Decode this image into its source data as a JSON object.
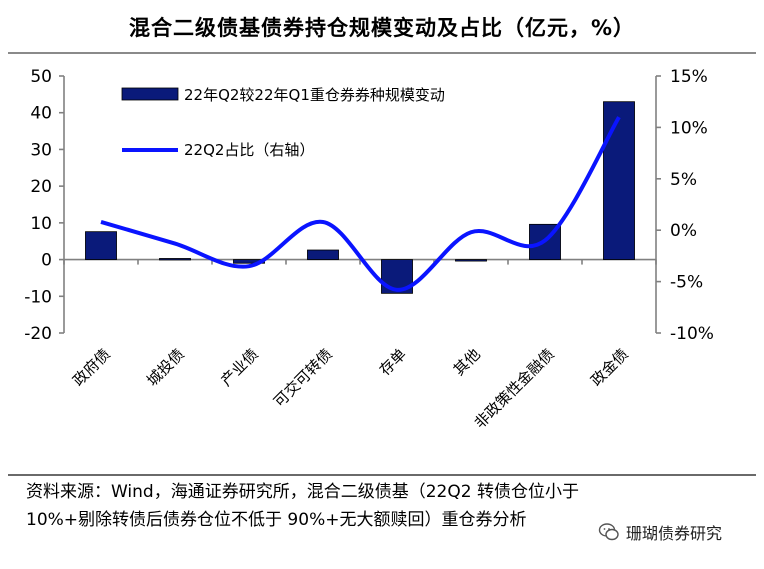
{
  "title": "混合二级债基债券持仓规模变动及占比（亿元，%）",
  "source_line1": "资料来源：Wind，海通证券研究所，混合二级债基（22Q2 转债仓位小于",
  "source_line2": "10%+剔除转债后债券仓位不低于 90%+无大额赎回）重仓券分析",
  "watermark": "珊瑚债券研究",
  "colors": {
    "bar": "#0a1a7a",
    "line": "#0a14ff",
    "axis": "#808080"
  },
  "chart_data": {
    "type": "bar+line",
    "categories": [
      "政府债",
      "城投债",
      "产业债",
      "可交可转债",
      "存单",
      "其他",
      "非政策性金融债",
      "政金债"
    ],
    "left_axis": {
      "ylim": [
        -20,
        50
      ],
      "ticks": [
        "50",
        "40",
        "30",
        "20",
        "10",
        "0",
        "-10",
        "-20"
      ],
      "tick_values": [
        50,
        40,
        30,
        20,
        10,
        0,
        -10,
        -20
      ]
    },
    "right_axis": {
      "ylim": [
        -10,
        15
      ],
      "ticks": [
        "15%",
        "10%",
        "5%",
        "0%",
        "-5%",
        "-10%"
      ],
      "tick_values": [
        15,
        10,
        5,
        0,
        -5,
        -10
      ]
    },
    "series": [
      {
        "name": "22年Q2较22年Q1重仓券券种规模变动",
        "type": "bar",
        "axis": "left",
        "values": [
          7.6,
          0.3,
          -1.0,
          2.6,
          -9.2,
          0.0,
          9.6,
          43.0
        ]
      },
      {
        "name": "22Q2占比（右轴）",
        "type": "line",
        "axis": "right",
        "values": [
          0.8,
          -1.3,
          -3.5,
          0.8,
          -5.8,
          -0.2,
          -1.0,
          11.0
        ]
      }
    ],
    "grid": false,
    "legend": "top-left"
  }
}
